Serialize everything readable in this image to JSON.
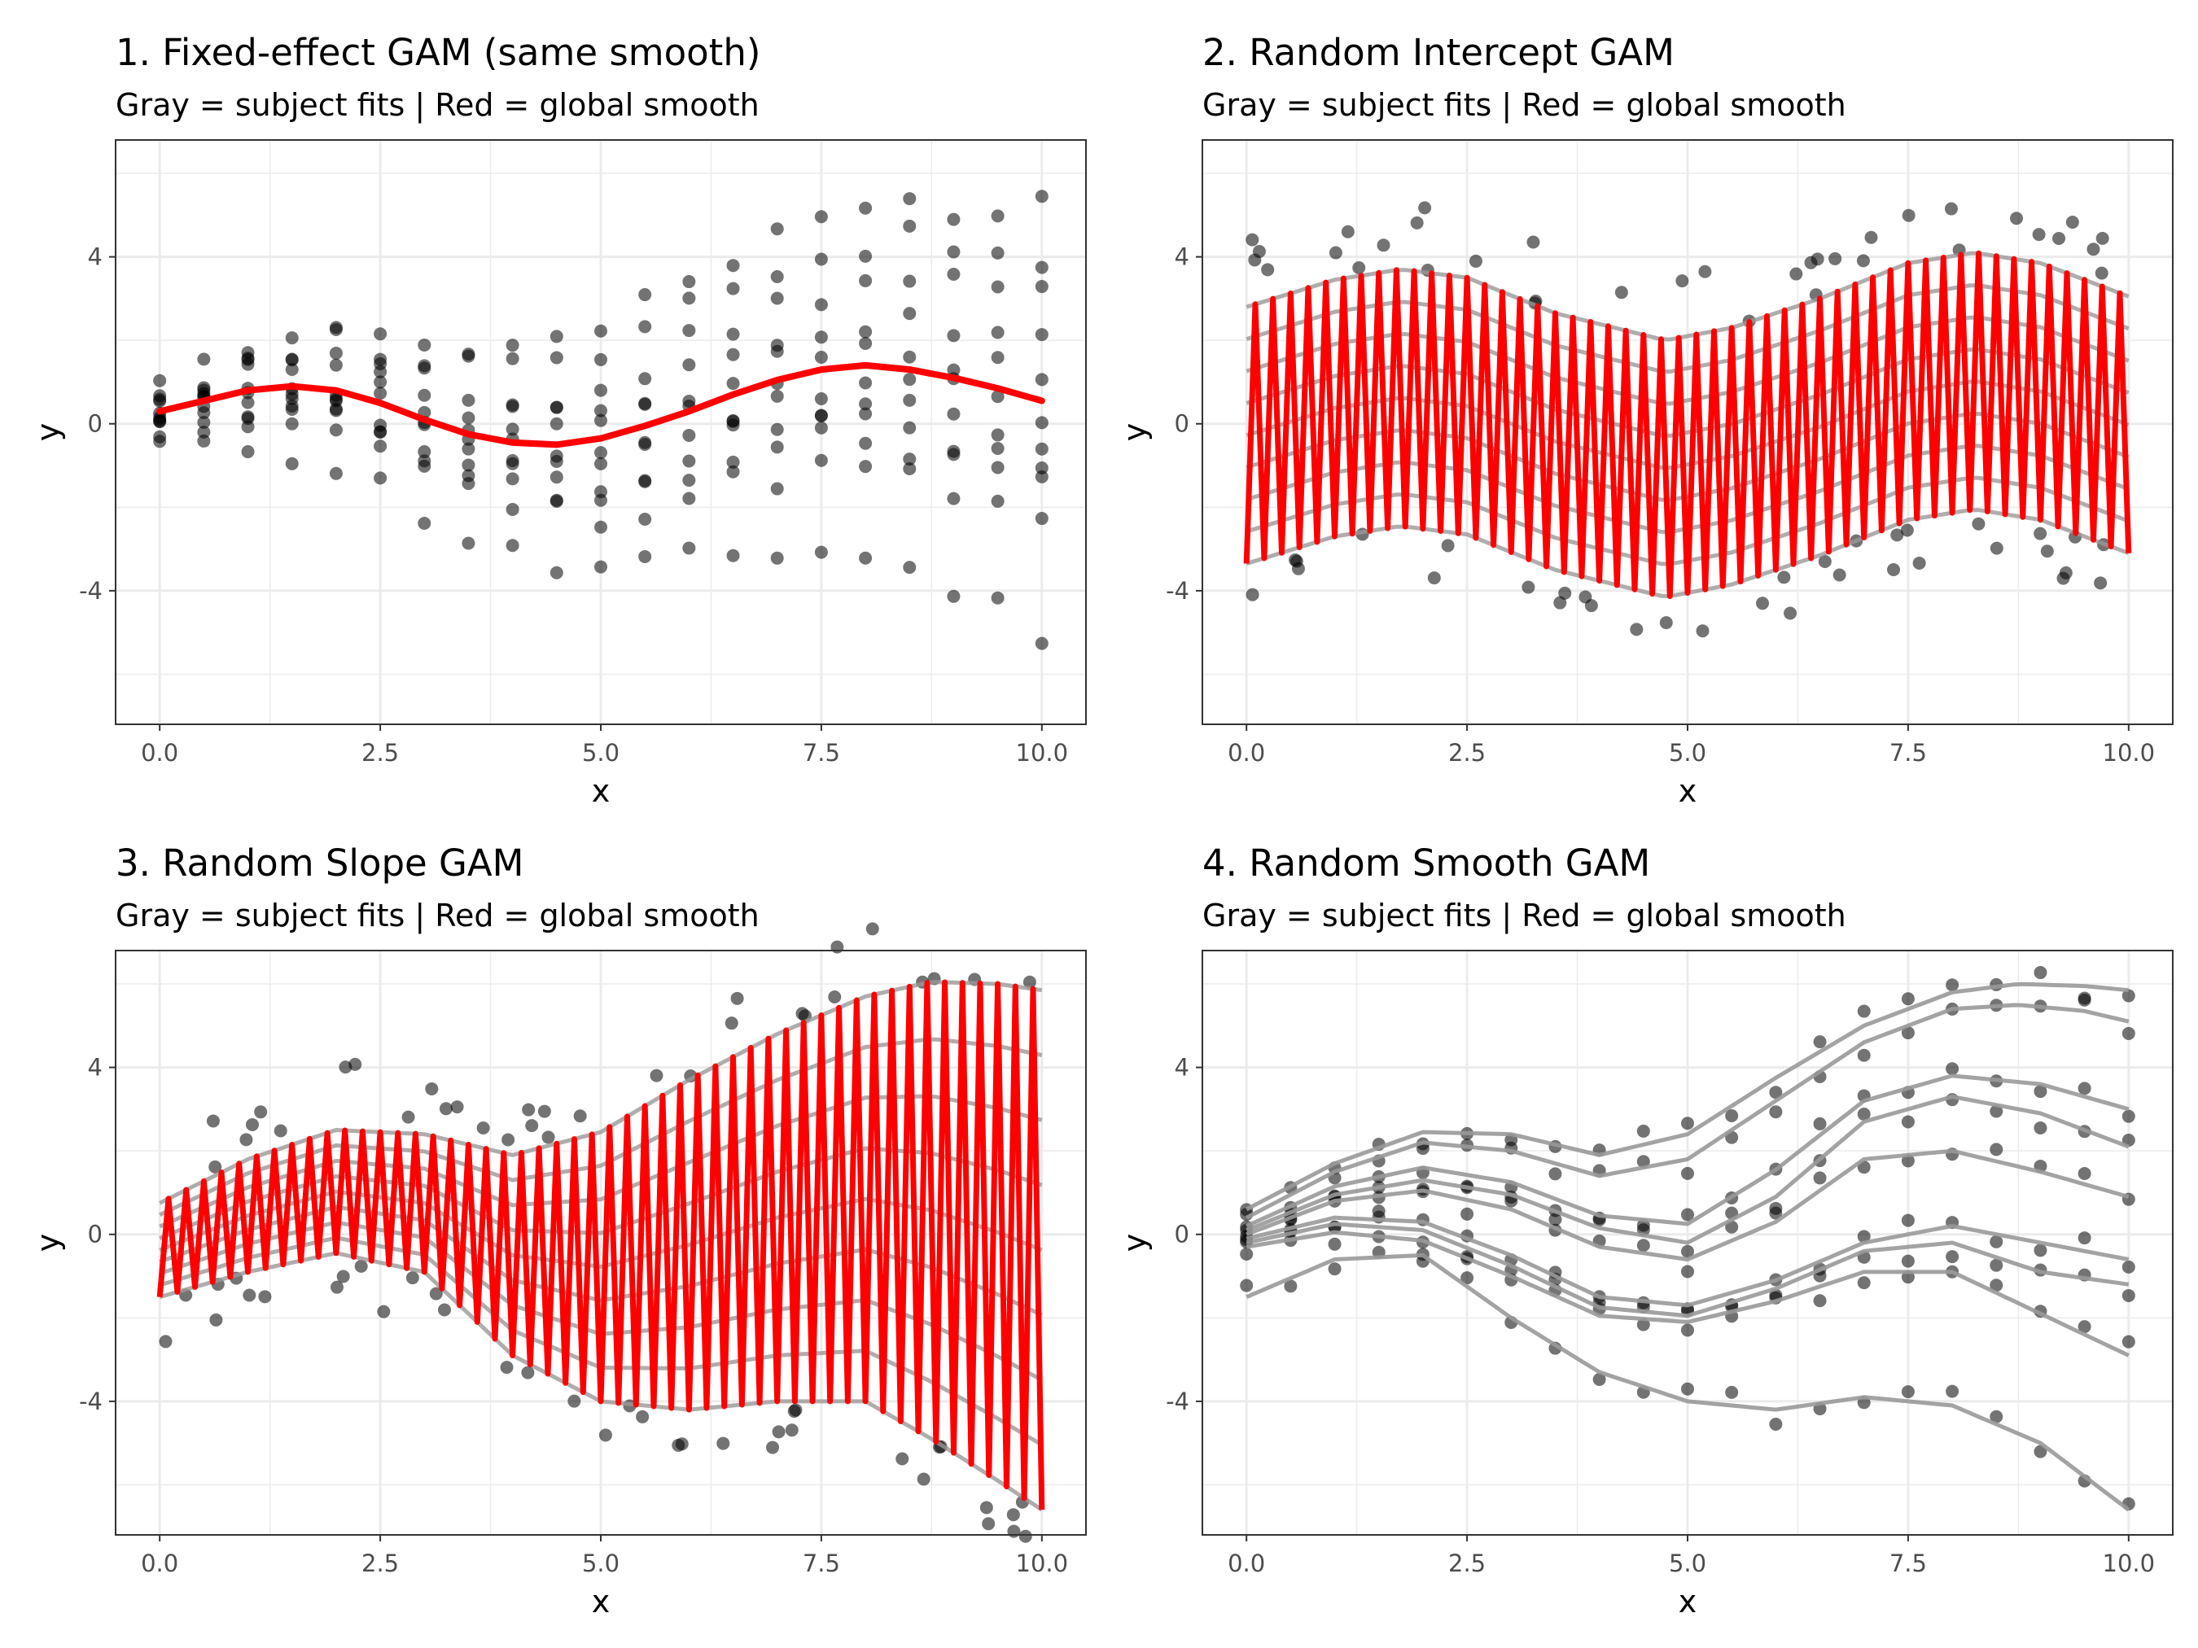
{
  "figure": {
    "colors": {
      "point": "#000000",
      "subject_fit": "#999999",
      "global_smooth": "#ff0000",
      "panel_border": "#333333",
      "grid": "#ebebeb",
      "axis_text": "#4d4d4d"
    }
  },
  "chart_data": [
    {
      "type": "scatter",
      "title": "1. Fixed-effect GAM (same smooth)",
      "subtitle": "Gray = subject fits | Red = global smooth",
      "xlabel": "x",
      "ylabel": "y",
      "xlim": [
        -0.5,
        10.5
      ],
      "ylim": [
        -7.2,
        6.8
      ],
      "xticks": [
        0,
        2.5,
        5,
        7.5,
        10
      ],
      "xtick_labels": [
        "0.0",
        "2.5",
        "5.0",
        "7.5",
        "10.0"
      ],
      "yticks": [
        -4,
        0,
        4
      ],
      "ytick_labels": [
        "-4",
        "0",
        "4"
      ],
      "grid": true,
      "legend": "none",
      "series": [
        {
          "name": "Red",
          "role": "global_smooth",
          "x": [
            0,
            0.5,
            1,
            1.5,
            2,
            2.5,
            3,
            3.5,
            4,
            4.5,
            5,
            5.5,
            6,
            6.5,
            7,
            7.5,
            8,
            8.5,
            9,
            9.5,
            10
          ],
          "y": [
            0.3,
            0.55,
            0.8,
            0.9,
            0.8,
            0.5,
            0.1,
            -0.25,
            -0.45,
            -0.5,
            -0.35,
            -0.05,
            0.3,
            0.7,
            1.05,
            1.3,
            1.4,
            1.3,
            1.1,
            0.85,
            0.55
          ]
        }
      ]
    },
    {
      "type": "scatter",
      "title": "2. Random Intercept GAM",
      "subtitle": "Gray = subject fits | Red = global smooth",
      "xlabel": "x",
      "ylabel": "y",
      "xlim": [
        -0.5,
        10.5
      ],
      "ylim": [
        -7.2,
        6.8
      ],
      "xticks": [
        0,
        2.5,
        5,
        7.5,
        10
      ],
      "xtick_labels": [
        "0.0",
        "2.5",
        "5.0",
        "7.5",
        "10.0"
      ],
      "yticks": [
        -4,
        0,
        4
      ],
      "ytick_labels": [
        "-4",
        "0",
        "4"
      ],
      "grid": true,
      "legend": "none",
      "series": [
        {
          "name": "Gray",
          "role": "subject_fits",
          "x": [
            0,
            1,
            1.75,
            2.5,
            3.5,
            4.75,
            5.5,
            6.5,
            7.5,
            8.25,
            9,
            10
          ],
          "upper": [
            2.8,
            3.45,
            3.7,
            3.5,
            2.65,
            2.0,
            2.3,
            3.0,
            3.85,
            4.1,
            3.85,
            3.05
          ],
          "lower": [
            -3.35,
            -2.7,
            -2.45,
            -2.65,
            -3.5,
            -4.15,
            -3.85,
            -3.15,
            -2.3,
            -2.05,
            -2.3,
            -3.1
          ]
        }
      ]
    },
    {
      "type": "scatter",
      "title": "3. Random Slope GAM",
      "subtitle": "Gray = subject fits | Red = global smooth",
      "xlabel": "x",
      "ylabel": "y",
      "xlim": [
        -0.5,
        10.5
      ],
      "ylim": [
        -7.2,
        6.8
      ],
      "xticks": [
        0,
        2.5,
        5,
        7.5,
        10
      ],
      "xtick_labels": [
        "0.0",
        "2.5",
        "5.0",
        "7.5",
        "10.0"
      ],
      "yticks": [
        -4,
        0,
        4
      ],
      "ytick_labels": [
        "-4",
        "0",
        "4"
      ],
      "grid": true,
      "legend": "none",
      "series": [
        {
          "name": "Gray",
          "role": "subject_fits",
          "x": [
            0,
            1,
            2,
            3,
            4,
            5,
            6,
            7,
            8,
            8.75,
            9.5,
            10
          ],
          "upper": [
            0.75,
            1.8,
            2.5,
            2.4,
            1.9,
            2.45,
            3.7,
            4.8,
            5.7,
            6.05,
            6.0,
            5.85
          ],
          "lower": [
            -1.5,
            -0.9,
            -0.45,
            -0.9,
            -2.9,
            -4.0,
            -4.2,
            -4.0,
            -4.0,
            -4.9,
            -5.9,
            -6.6
          ]
        }
      ]
    },
    {
      "type": "scatter",
      "title": "4. Random Smooth GAM",
      "subtitle": "Gray = subject fits | Red = global smooth",
      "xlabel": "x",
      "ylabel": "y",
      "xlim": [
        -0.5,
        10.5
      ],
      "ylim": [
        -7.2,
        6.8
      ],
      "xticks": [
        0,
        2.5,
        5,
        7.5,
        10
      ],
      "xtick_labels": [
        "0.0",
        "2.5",
        "5.0",
        "7.5",
        "10.0"
      ],
      "yticks": [
        -4,
        0,
        4
      ],
      "ytick_labels": [
        "-4",
        "0",
        "4"
      ],
      "grid": true,
      "legend": "none",
      "series": [
        {
          "name": "Gray",
          "role": "subject_fits",
          "curves": [
            {
              "x": [
                0,
                1,
                2,
                3,
                4,
                5,
                6,
                7,
                8,
                8.75,
                9.5,
                10
              ],
              "y": [
                0.6,
                1.7,
                2.45,
                2.4,
                1.9,
                2.4,
                3.75,
                5.0,
                5.8,
                6.0,
                5.95,
                5.85
              ]
            },
            {
              "x": [
                0,
                1,
                2,
                3,
                4,
                5,
                6,
                7,
                8,
                8.75,
                9.5,
                10
              ],
              "y": [
                0.4,
                1.5,
                2.2,
                2.0,
                1.4,
                1.8,
                3.2,
                4.6,
                5.4,
                5.5,
                5.35,
                5.1
              ]
            },
            {
              "x": [
                0,
                1,
                2,
                3,
                4,
                5,
                6,
                7,
                8,
                9,
                10
              ],
              "y": [
                0.2,
                1.15,
                1.6,
                1.25,
                0.45,
                0.25,
                1.55,
                3.2,
                3.8,
                3.6,
                3.0
              ]
            },
            {
              "x": [
                0,
                1,
                2,
                3,
                4,
                5,
                6,
                7,
                8,
                9,
                10
              ],
              "y": [
                0.1,
                0.95,
                1.3,
                0.95,
                0.15,
                -0.2,
                0.9,
                2.7,
                3.3,
                2.9,
                2.1
              ]
            },
            {
              "x": [
                0,
                1,
                2,
                3,
                4,
                5,
                6,
                7,
                8,
                9,
                10
              ],
              "y": [
                0.0,
                0.8,
                1.05,
                0.6,
                -0.3,
                -0.6,
                0.3,
                1.8,
                2.0,
                1.5,
                0.9
              ]
            },
            {
              "x": [
                0,
                1,
                2,
                3,
                4,
                5,
                6,
                7,
                8,
                9,
                10
              ],
              "y": [
                -0.1,
                0.4,
                0.3,
                -0.5,
                -1.5,
                -1.7,
                -1.1,
                -0.2,
                0.2,
                -0.2,
                -0.6
              ]
            },
            {
              "x": [
                0,
                1,
                2,
                3,
                4,
                5,
                6,
                7,
                8,
                9,
                10
              ],
              "y": [
                -0.2,
                0.25,
                0.1,
                -0.75,
                -1.75,
                -1.95,
                -1.3,
                -0.4,
                -0.2,
                -0.9,
                -1.2
              ]
            },
            {
              "x": [
                0,
                1,
                2,
                3,
                4,
                5,
                6,
                7,
                8,
                9,
                10
              ],
              "y": [
                -0.3,
                0.05,
                -0.15,
                -1.0,
                -1.95,
                -2.1,
                -1.6,
                -0.9,
                -0.9,
                -1.9,
                -2.9
              ]
            },
            {
              "x": [
                0,
                1,
                2,
                3,
                4,
                5,
                6,
                7,
                8,
                9,
                10
              ],
              "y": [
                -1.5,
                -0.6,
                -0.5,
                -2.0,
                -3.3,
                -4.0,
                -4.2,
                -3.9,
                -4.1,
                -5.0,
                -6.6
              ]
            }
          ]
        }
      ]
    }
  ]
}
